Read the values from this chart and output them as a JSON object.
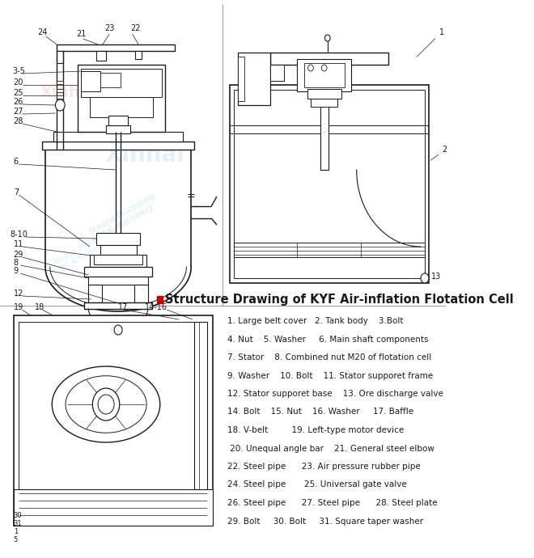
{
  "title": "Structure Drawing of KYF Air-inflation Flotation Cell",
  "title_color": "#cc0000",
  "bg_color": "#ffffff",
  "legend_lines": [
    "1. Large belt cover   2. Tank body    3.Bolt",
    "4. Nut    5. Washer     6. Main shaft components",
    "7. Stator    8. Combined nut M20 of flotation cell",
    "9. Washer    10. Bolt    11. Stator supporet frame",
    "12. Stator supporet base    13. Ore discharge valve",
    "14. Bolt    15. Nut    16. Washer     17. Baffle",
    "18. V-belt         19. Left-type motor device",
    " 20. Unequal angle bar    21. General steel elbow",
    "22. Steel pipe      23. Air pressure rubber pipe",
    "24. Steel pipe       25. Universal gate valve",
    "26. Steel pipe      27. Steel pipe      28. Steel plate",
    "29. Bolt     30. Bolt     31. Square taper washer"
  ],
  "line_color": "#1a1a1a",
  "watermark_blue": "#b8d4e8",
  "watermark_red": "#e8a0a0"
}
